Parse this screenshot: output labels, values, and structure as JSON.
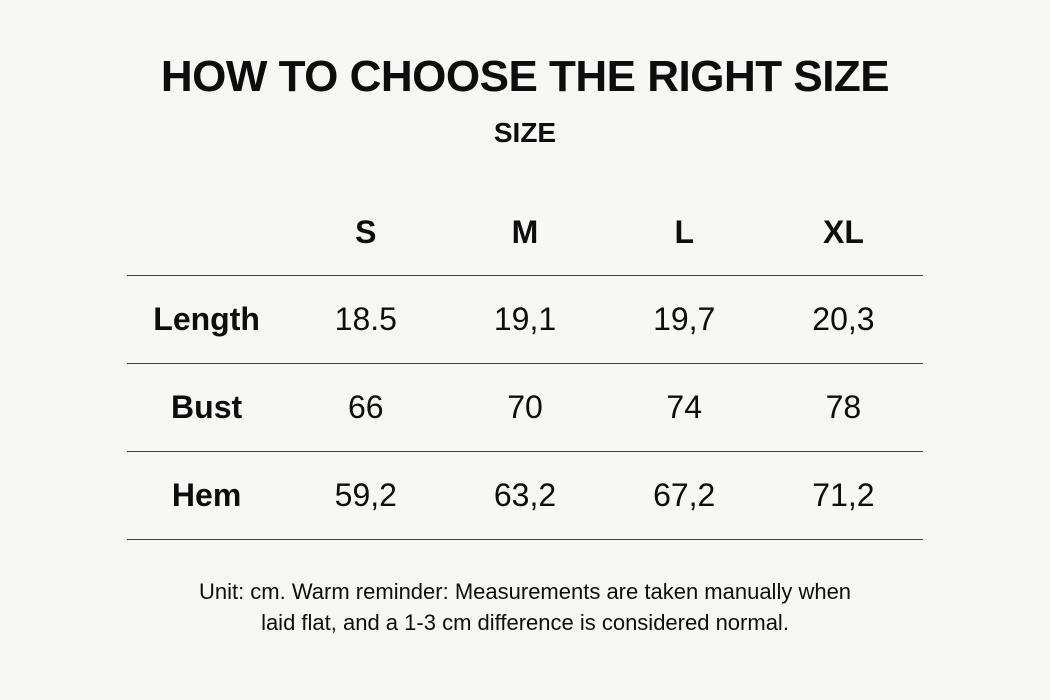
{
  "colors": {
    "background": "#f7f7f5",
    "text": "#0d0d0d",
    "line": "#3f3f3f"
  },
  "chart_data": {
    "type": "table",
    "title": "HOW TO CHOOSE THE RIGHT SIZE",
    "subtitle": "SIZE",
    "col_headers": [
      "S",
      "M",
      "L",
      "XL"
    ],
    "rows": [
      {
        "label": "Length",
        "values": [
          "18.5",
          "19,1",
          "19,7",
          "20,3"
        ]
      },
      {
        "label": "Bust",
        "values": [
          "66",
          "70",
          "74",
          "78"
        ]
      },
      {
        "label": "Hem",
        "values": [
          "59,2",
          "63,2",
          "67,2",
          "71,2"
        ]
      }
    ],
    "note_lines": [
      "Unit: cm. Warm reminder: Measurements are taken manually when",
      "laid flat, and a 1-3 cm difference is considered normal."
    ]
  }
}
